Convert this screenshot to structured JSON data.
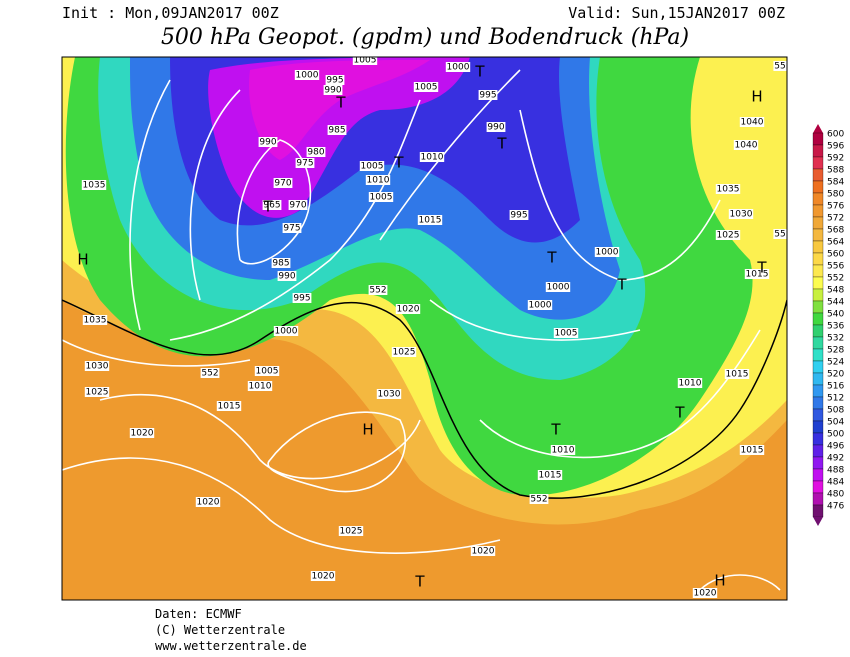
{
  "header": {
    "init": "Init : Mon,09JAN2017 00Z",
    "valid": "Valid: Sun,15JAN2017 00Z",
    "title": "500 hPa Geopot. (gpdm) und Bodendruck (hPa)"
  },
  "legend": [
    {
      "label": "600",
      "color": "#b00040"
    },
    {
      "label": "596",
      "color": "#c81848"
    },
    {
      "label": "592",
      "color": "#e03050"
    },
    {
      "label": "588",
      "color": "#e85c30"
    },
    {
      "label": "584",
      "color": "#ee7020"
    },
    {
      "label": "580",
      "color": "#f08828"
    },
    {
      "label": "576",
      "color": "#f09830"
    },
    {
      "label": "572",
      "color": "#f0a838"
    },
    {
      "label": "568",
      "color": "#f4b840"
    },
    {
      "label": "564",
      "color": "#f8c840"
    },
    {
      "label": "560",
      "color": "#fcd848"
    },
    {
      "label": "556",
      "color": "#fce850"
    },
    {
      "label": "552",
      "color": "#fcfc50"
    },
    {
      "label": "548",
      "color": "#c8f040"
    },
    {
      "label": "544",
      "color": "#80e040"
    },
    {
      "label": "540",
      "color": "#40d840"
    },
    {
      "label": "536",
      "color": "#30d070"
    },
    {
      "label": "532",
      "color": "#30d8a0"
    },
    {
      "label": "528",
      "color": "#30e0c8"
    },
    {
      "label": "524",
      "color": "#30d0f0"
    },
    {
      "label": "520",
      "color": "#30b8f0"
    },
    {
      "label": "516",
      "color": "#3098f0"
    },
    {
      "label": "512",
      "color": "#3078e8"
    },
    {
      "label": "508",
      "color": "#3058e0"
    },
    {
      "label": "504",
      "color": "#2040d0"
    },
    {
      "label": "500",
      "color": "#3830e0"
    },
    {
      "label": "496",
      "color": "#6020e8"
    },
    {
      "label": "492",
      "color": "#9018f0"
    },
    {
      "label": "488",
      "color": "#c010f0"
    },
    {
      "label": "484",
      "color": "#e010e0"
    },
    {
      "label": "480",
      "color": "#b010b0"
    },
    {
      "label": "476",
      "color": "#701070"
    }
  ],
  "map": {
    "pressure_labels": [
      "1000",
      "995",
      "990",
      "1005",
      "1000",
      "1005",
      "995",
      "985",
      "990",
      "980",
      "975",
      "1005",
      "1010",
      "990",
      "970",
      "965",
      "970",
      "1010",
      "1005",
      "975",
      "1015",
      "995",
      "1035",
      "985",
      "990",
      "1000",
      "1000",
      "995",
      "552",
      "1020",
      "1000",
      "1005",
      "1035",
      "1000",
      "1025",
      "1030",
      "552",
      "1005",
      "1010",
      "1030",
      "1025",
      "1015",
      "1010",
      "1015",
      "1020",
      "1010",
      "1015",
      "1015",
      "552",
      "1020",
      "1025",
      "1020",
      "1020",
      "1020",
      "1040",
      "1040",
      "1035",
      "1030",
      "1025",
      "1015",
      "55",
      "55"
    ],
    "markers": [
      "H",
      "H",
      "H",
      "H",
      "T",
      "T",
      "T",
      "T",
      "T",
      "T",
      "T",
      "T",
      "T",
      "T",
      "T"
    ]
  },
  "footer": {
    "source": "Daten: ECMWF",
    "copyright": "(C) Wetterzentrale",
    "url": "www.wetterzentrale.de"
  }
}
